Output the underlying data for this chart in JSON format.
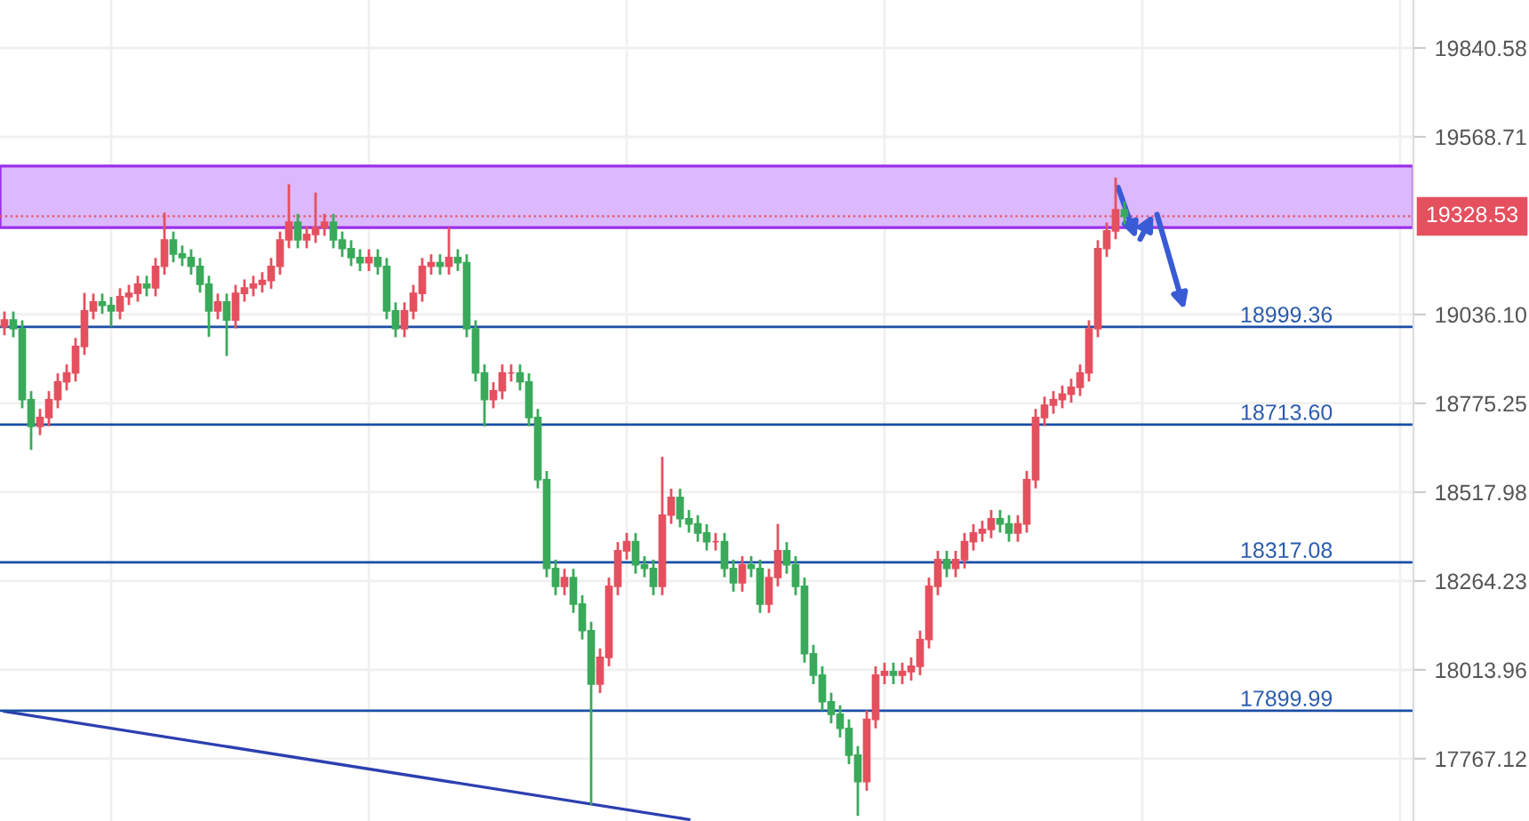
{
  "chart_data": {
    "type": "candlestick",
    "log": "y",
    "grid": true,
    "categories": [
      null,
      null,
      null,
      null,
      null,
      null,
      null,
      null,
      null,
      null,
      null,
      null,
      null,
      null,
      null,
      null,
      null,
      null,
      null,
      null,
      null,
      null,
      null,
      null,
      null,
      null,
      null,
      null,
      null,
      null,
      null,
      null,
      null,
      null,
      null,
      null,
      null,
      null,
      null,
      null,
      null,
      null,
      null,
      null,
      null,
      null,
      null,
      null,
      null,
      null,
      null,
      null,
      null,
      null,
      null,
      null,
      null,
      null,
      null,
      null,
      null,
      null,
      null,
      null,
      null,
      null,
      null,
      null,
      null,
      null,
      null,
      null,
      null,
      null,
      null,
      null,
      null,
      null,
      null,
      null,
      null,
      null,
      null,
      null,
      null,
      null,
      null,
      null,
      null,
      null,
      null,
      null,
      null,
      null,
      null,
      null,
      null,
      null,
      null,
      null,
      null,
      null,
      null,
      null,
      null,
      null,
      null,
      null,
      null,
      null,
      null,
      null,
      null,
      null,
      null,
      null,
      null,
      null,
      null,
      null,
      null,
      null,
      null,
      null,
      null,
      null,
      null,
      null,
      null,
      null,
      null,
      null,
      null,
      null,
      null,
      null,
      null,
      null,
      null,
      null,
      null,
      null,
      null,
      null,
      null,
      null,
      null,
      null,
      null,
      null,
      null,
      null,
      null,
      null,
      null,
      null,
      null,
      null,
      null
    ],
    "ohlc": [
      [
        19000,
        19045,
        18975,
        19020
      ],
      [
        19020,
        19045,
        18969,
        18994
      ],
      [
        18994,
        19019,
        18761,
        18786
      ],
      [
        18786,
        18811,
        18640,
        18708
      ],
      [
        18708,
        18759,
        18683,
        18734
      ],
      [
        18734,
        18811,
        18709,
        18786
      ],
      [
        18786,
        18863,
        18761,
        18838
      ],
      [
        18838,
        18889,
        18813,
        18864
      ],
      [
        18864,
        18967,
        18839,
        18942
      ],
      [
        18942,
        19100,
        18917,
        19047
      ],
      [
        19047,
        19098,
        19022,
        19073
      ],
      [
        19073,
        19098,
        19038,
        19063
      ],
      [
        19063,
        19088,
        19000,
        19047
      ],
      [
        19047,
        19114,
        19022,
        19089
      ],
      [
        19089,
        19124,
        19064,
        19099
      ],
      [
        19099,
        19151,
        19074,
        19126
      ],
      [
        19126,
        19151,
        19090,
        19115
      ],
      [
        19115,
        19204,
        19090,
        19179
      ],
      [
        19179,
        19340,
        19154,
        19258
      ],
      [
        19258,
        19283,
        19191,
        19216
      ],
      [
        19216,
        19241,
        19180,
        19205
      ],
      [
        19205,
        19230,
        19154,
        19179
      ],
      [
        19179,
        19204,
        19101,
        19126
      ],
      [
        19126,
        19151,
        18970,
        19047
      ],
      [
        19047,
        19098,
        19022,
        19073
      ],
      [
        19073,
        19098,
        18914,
        19020
      ],
      [
        19020,
        19124,
        18995,
        19099
      ],
      [
        19099,
        19140,
        19074,
        19115
      ],
      [
        19115,
        19151,
        19090,
        19126
      ],
      [
        19126,
        19162,
        19101,
        19137
      ],
      [
        19137,
        19204,
        19112,
        19179
      ],
      [
        19179,
        19283,
        19154,
        19258
      ],
      [
        19258,
        19425,
        19233,
        19311
      ],
      [
        19311,
        19336,
        19233,
        19258
      ],
      [
        19258,
        19299,
        19233,
        19274
      ],
      [
        19274,
        19400,
        19249,
        19295
      ],
      [
        19295,
        19336,
        19270,
        19311
      ],
      [
        19311,
        19336,
        19233,
        19258
      ],
      [
        19258,
        19283,
        19207,
        19232
      ],
      [
        19232,
        19257,
        19180,
        19205
      ],
      [
        19205,
        19230,
        19165,
        19190
      ],
      [
        19190,
        19230,
        19165,
        19205
      ],
      [
        19205,
        19230,
        19154,
        19179
      ],
      [
        19179,
        19204,
        19022,
        19047
      ],
      [
        19047,
        19072,
        18969,
        18994
      ],
      [
        18994,
        19072,
        18969,
        19047
      ],
      [
        19047,
        19124,
        19022,
        19099
      ],
      [
        19099,
        19204,
        19074,
        19179
      ],
      [
        19179,
        19215,
        19154,
        19190
      ],
      [
        19190,
        19215,
        19154,
        19179
      ],
      [
        19179,
        19295,
        19154,
        19205
      ],
      [
        19205,
        19230,
        19165,
        19190
      ],
      [
        19190,
        19215,
        18969,
        18994
      ],
      [
        18994,
        19019,
        18839,
        18864
      ],
      [
        18864,
        18889,
        18708,
        18786
      ],
      [
        18786,
        18837,
        18761,
        18812
      ],
      [
        18812,
        18889,
        18787,
        18864
      ],
      [
        18864,
        18889,
        18839,
        18864
      ],
      [
        18864,
        18889,
        18813,
        18838
      ],
      [
        18838,
        18863,
        18709,
        18734
      ],
      [
        18734,
        18759,
        18529,
        18554
      ],
      [
        18554,
        18579,
        18275,
        18300
      ],
      [
        18300,
        18325,
        18224,
        18249
      ],
      [
        18249,
        18299,
        18224,
        18274
      ],
      [
        18274,
        18299,
        18174,
        18199
      ],
      [
        18199,
        18224,
        18099,
        18124
      ],
      [
        18124,
        18149,
        17640,
        17974
      ],
      [
        17974,
        18074,
        17949,
        18049
      ],
      [
        18049,
        18274,
        18024,
        18249
      ],
      [
        18249,
        18375,
        18224,
        18350
      ],
      [
        18350,
        18401,
        18325,
        18376
      ],
      [
        18376,
        18401,
        18285,
        18310
      ],
      [
        18310,
        18335,
        18275,
        18300
      ],
      [
        18300,
        18325,
        18224,
        18249
      ],
      [
        18249,
        18620,
        18224,
        18452
      ],
      [
        18452,
        18528,
        18427,
        18503
      ],
      [
        18503,
        18528,
        18417,
        18442
      ],
      [
        18442,
        18467,
        18402,
        18427
      ],
      [
        18427,
        18452,
        18376,
        18401
      ],
      [
        18401,
        18426,
        18351,
        18376
      ],
      [
        18376,
        18401,
        18351,
        18376
      ],
      [
        18376,
        18401,
        18275,
        18300
      ],
      [
        18300,
        18325,
        18234,
        18259
      ],
      [
        18259,
        18335,
        18234,
        18310
      ],
      [
        18310,
        18335,
        18275,
        18300
      ],
      [
        18300,
        18325,
        18174,
        18199
      ],
      [
        18199,
        18299,
        18174,
        18274
      ],
      [
        18274,
        18427,
        18249,
        18350
      ],
      [
        18350,
        18375,
        18285,
        18310
      ],
      [
        18310,
        18335,
        18224,
        18249
      ],
      [
        18249,
        18274,
        18034,
        18059
      ],
      [
        18059,
        18084,
        17974,
        17999
      ],
      [
        17999,
        18024,
        17900,
        17925
      ],
      [
        17925,
        17950,
        17865,
        17890
      ],
      [
        17890,
        17915,
        17826,
        17851
      ],
      [
        17851,
        17876,
        17752,
        17777
      ],
      [
        17777,
        17802,
        17610,
        17704
      ],
      [
        17704,
        17901,
        17679,
        17876
      ],
      [
        17876,
        18024,
        17851,
        17999
      ],
      [
        17999,
        18034,
        17974,
        18009
      ],
      [
        18009,
        18034,
        17974,
        17999
      ],
      [
        17999,
        18034,
        17974,
        18009
      ],
      [
        18009,
        18049,
        17984,
        18024
      ],
      [
        18024,
        18124,
        17999,
        18099
      ],
      [
        18099,
        18274,
        18074,
        18249
      ],
      [
        18249,
        18350,
        18224,
        18325
      ],
      [
        18325,
        18350,
        18275,
        18300
      ],
      [
        18300,
        18350,
        18275,
        18325
      ],
      [
        18325,
        18401,
        18300,
        18376
      ],
      [
        18376,
        18426,
        18351,
        18401
      ],
      [
        18401,
        18436,
        18376,
        18411
      ],
      [
        18411,
        18467,
        18386,
        18442
      ],
      [
        18442,
        18467,
        18402,
        18427
      ],
      [
        18427,
        18452,
        18376,
        18401
      ],
      [
        18401,
        18452,
        18376,
        18427
      ],
      [
        18427,
        18579,
        18402,
        18554
      ],
      [
        18554,
        18759,
        18529,
        18734
      ],
      [
        18734,
        18795,
        18709,
        18770
      ],
      [
        18770,
        18811,
        18745,
        18786
      ],
      [
        18786,
        18827,
        18761,
        18802
      ],
      [
        18802,
        18847,
        18777,
        18822
      ],
      [
        18822,
        18889,
        18797,
        18864
      ],
      [
        18864,
        19019,
        18839,
        18994
      ],
      [
        18994,
        19257,
        18969,
        19232
      ],
      [
        19232,
        19310,
        19207,
        19285
      ],
      [
        19285,
        19445,
        19260,
        19348
      ],
      [
        19348,
        19373,
        19304,
        19329
      ],
      null,
      null,
      null,
      null,
      null,
      null,
      null,
      null,
      null,
      null,
      null,
      null,
      null,
      null,
      null,
      null,
      null,
      null,
      null,
      null,
      null,
      null,
      null,
      null,
      null,
      null,
      null,
      null,
      null,
      null,
      null,
      null
    ],
    "series": [
      {
        "type": "line",
        "color": "#2d3fb0",
        "values": [
          17898,
          null,
          null,
          null,
          null,
          null,
          null,
          null,
          null,
          null,
          null,
          null,
          null,
          null,
          null,
          null,
          null,
          null,
          null,
          null,
          null,
          null,
          null,
          null,
          null,
          null,
          null,
          null,
          null,
          null,
          null,
          null,
          null,
          null,
          null,
          null,
          null,
          null,
          null,
          null,
          null,
          null,
          null,
          null,
          null,
          null,
          null,
          null,
          null,
          null,
          null,
          null,
          null,
          null,
          null,
          null,
          null,
          null,
          null,
          null,
          null,
          null,
          null,
          null,
          null,
          null,
          null,
          null,
          null,
          null,
          null,
          null,
          null,
          null,
          null,
          null,
          null,
          17600,
          null,
          null,
          null,
          null,
          null,
          null,
          null,
          null,
          null,
          null,
          null,
          null,
          null,
          null,
          null,
          null,
          null,
          null,
          null,
          null,
          null,
          null,
          null,
          null,
          null,
          null,
          null,
          null,
          null,
          null,
          null,
          null,
          null,
          null,
          null,
          null,
          null,
          null,
          null,
          null,
          null,
          null,
          null,
          null,
          null,
          null,
          null,
          null,
          null,
          null,
          null,
          null,
          null,
          null,
          null,
          null,
          null,
          null,
          null,
          null,
          null,
          null,
          null,
          null,
          null,
          null,
          null,
          null,
          null,
          null,
          null,
          null,
          null,
          null,
          null,
          null,
          null,
          null,
          null,
          null,
          null
        ]
      }
    ],
    "ylim": [
      17596,
      19989
    ],
    "yticks": [
      17767.12,
      18013.96,
      18264.23,
      18517.98,
      18775.25,
      {
        "value": 19036.1,
        "label": "19036.10"
      },
      19568.71,
      19840.58
    ],
    "bands": [
      {
        "axis": "y",
        "from": 19295,
        "to": 19480,
        "color": "#dcb8fc"
      }
    ],
    "ref_lines": [
      {
        "axis": "y",
        "value": 18999.36,
        "label": "18999.36",
        "color": "#1a4ea6"
      },
      {
        "axis": "y",
        "value": 18713.6,
        "label": "18713.60",
        "color": "#1a4ea6"
      },
      {
        "axis": "y",
        "value": 18317.08,
        "label": "18317.08",
        "color": "#1a4ea6"
      },
      {
        "axis": "y",
        "value": 17899.99,
        "label": "17899.99",
        "color": "#1a4ea6"
      },
      {
        "axis": "y",
        "value": 19328.53,
        "label": "19328.53",
        "color": "#e5505f",
        "line_style": "dotted"
      }
    ]
  }
}
